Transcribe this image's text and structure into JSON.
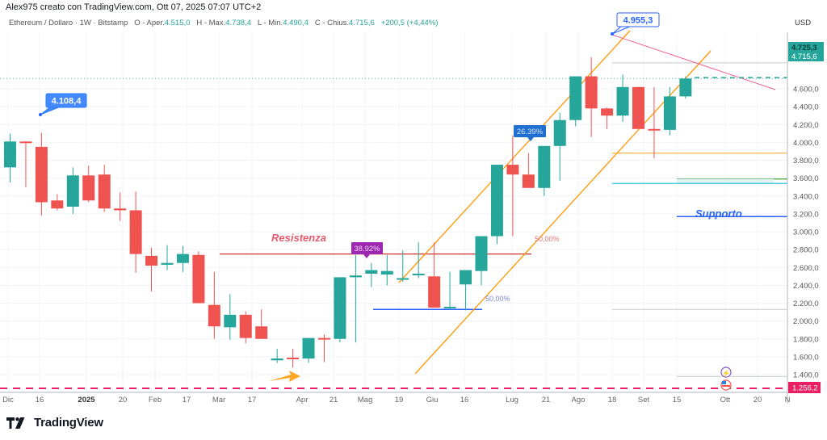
{
  "header": {
    "author_line": "Alex975 creato con TradingView.com, Ott 07, 2025 07:07 UTC+2",
    "symbol": "Ethereum / Dollaro · 1W · Bitstamp",
    "open_label": "O - Aper.",
    "open": "4.515,0",
    "high_label": "H - Max.",
    "high": "4.738,4",
    "low_label": "L - Min.",
    "low": "4.490,4",
    "close_label": "C - Chius.",
    "close": "4.715,6",
    "change": "+200,5 (+4,44%)"
  },
  "price_axis": {
    "currency": "USD",
    "ticks": [
      "4.600,0",
      "4.400,0",
      "4.200,0",
      "4.000,0",
      "3.800,0",
      "3.600,0",
      "3.400,0",
      "3.200,0",
      "3.000,0",
      "2.800,0",
      "2.600,0",
      "2.400,0",
      "2.200,0",
      "2.000,0",
      "1.800,0",
      "1.600,0",
      "1.400,0"
    ],
    "last_price_high": "4.725,3",
    "last_price": "4.715,6",
    "alert_price": "1.256,2"
  },
  "time_axis": {
    "labels": [
      "Dic",
      "16",
      "2025",
      "20",
      "Feb",
      "17",
      "Mar",
      "17",
      "Apr",
      "21",
      "Mag",
      "19",
      "Giu",
      "16",
      "Lug",
      "21",
      "Ago",
      "18",
      "Set",
      "15",
      "Ott",
      "20",
      "N"
    ]
  },
  "annotations": {
    "high_callout_left": "4.108,4",
    "high_callout_right": "4.955,3",
    "resistance_label": "Resistenza",
    "support_label": "Supporto",
    "pct_badge_may": "38.92%",
    "pct_badge_jul": "26.39%",
    "fib_upper": "50,00%",
    "fib_lower": "50,00%"
  },
  "colors": {
    "up": "#26a69a",
    "down": "#ef5350",
    "resistance": "#d32f2f",
    "support": "#2962ff",
    "channel": "#ff9800",
    "alert": "#e91e63",
    "callout": "#448aff",
    "badge_purple": "#9c27b0",
    "badge_blue": "#1e6fd0"
  },
  "brand": {
    "name": "TradingView"
  },
  "chart_data": {
    "type": "candlestick",
    "title": "Ethereum / Dollaro · 1W · Bitstamp",
    "xlabel": "",
    "ylabel": "USD",
    "ylim": [
      1256,
      4955
    ],
    "grid": true,
    "categories": [
      "2024-12-09",
      "2024-12-16",
      "2024-12-23",
      "2024-12-30",
      "2025-01-06",
      "2025-01-13",
      "2025-01-20",
      "2025-01-27",
      "2025-02-03",
      "2025-02-10",
      "2025-02-17",
      "2025-02-24",
      "2025-03-03",
      "2025-03-10",
      "2025-03-17",
      "2025-03-24",
      "2025-03-31",
      "2025-04-07",
      "2025-04-14",
      "2025-04-21",
      "2025-04-28",
      "2025-05-05",
      "2025-05-12",
      "2025-05-19",
      "2025-05-26",
      "2025-06-02",
      "2025-06-09",
      "2025-06-16",
      "2025-06-23",
      "2025-06-30",
      "2025-07-07",
      "2025-07-14",
      "2025-07-21",
      "2025-07-28",
      "2025-08-04",
      "2025-08-11",
      "2025-08-18",
      "2025-08-25",
      "2025-09-01",
      "2025-09-08",
      "2025-09-15",
      "2025-09-22",
      "2025-09-29",
      "2025-10-06"
    ],
    "series": [
      {
        "name": "open",
        "values": [
          3720,
          4010,
          3950,
          3350,
          3280,
          3630,
          3640,
          3260,
          3240,
          2730,
          2630,
          2650,
          2740,
          2180,
          1930,
          2070,
          1940,
          1560,
          1590,
          1580,
          1810,
          1800,
          2490,
          2530,
          2520,
          2480,
          2530,
          2500,
          2150,
          2410,
          2560,
          2950,
          3750,
          3640,
          3490,
          3960,
          4250,
          4740,
          4380,
          4300,
          4620,
          4150,
          4140,
          4515
        ]
      },
      {
        "name": "high",
        "values": [
          4100,
          4010,
          4108,
          3420,
          3720,
          3740,
          3750,
          3440,
          3450,
          2820,
          2850,
          2840,
          2780,
          2550,
          2300,
          2110,
          2130,
          1690,
          1690,
          1680,
          1850,
          1870,
          2740,
          2650,
          2740,
          2790,
          2880,
          2880,
          2550,
          2530,
          2600,
          3080,
          4080,
          3880,
          3700,
          4330,
          4740,
          4955,
          4390,
          4760,
          4620,
          4620,
          4620,
          4738
        ]
      },
      {
        "name": "low",
        "values": [
          3550,
          3500,
          3180,
          3240,
          3200,
          3330,
          3220,
          3120,
          2540,
          2330,
          2570,
          2550,
          2380,
          1800,
          1790,
          1750,
          1850,
          1530,
          1480,
          1530,
          1540,
          1760,
          1760,
          2380,
          2400,
          2440,
          2480,
          2470,
          2130,
          2120,
          2400,
          2860,
          2950,
          3640,
          3400,
          3570,
          4180,
          4060,
          4150,
          4230,
          4450,
          3820,
          4080,
          4490
        ]
      },
      {
        "name": "close",
        "values": [
          4010,
          4000,
          3330,
          3260,
          3630,
          3350,
          3260,
          3240,
          2750,
          2620,
          2650,
          2750,
          2200,
          1940,
          2070,
          1810,
          1800,
          1580,
          1580,
          1810,
          1800,
          2490,
          2510,
          2570,
          2560,
          2480,
          2530,
          2150,
          2160,
          2570,
          2950,
          3750,
          3640,
          3490,
          3960,
          4250,
          4740,
          4380,
          4300,
          4620,
          4150,
          4140,
          4515,
          4715
        ]
      }
    ],
    "overlays": {
      "resistance_level": 2750,
      "support_level": 3170,
      "horizontal_levels": [
        3880,
        3590,
        3540,
        2130,
        1380,
        4890
      ],
      "alert_level": 1256.2,
      "trendline_down": {
        "from": [
          "2025-08-18",
          4955
        ],
        "to": [
          "2025-10-13",
          4380
        ]
      },
      "channel": [
        {
          "from": [
            "2025-05-19",
            2370
          ],
          "to": [
            "2025-08-18",
            4955
          ]
        },
        {
          "from": [
            "2025-05-12",
            1470
          ],
          "to": [
            "2025-09-22",
            4700
          ]
        }
      ]
    }
  }
}
